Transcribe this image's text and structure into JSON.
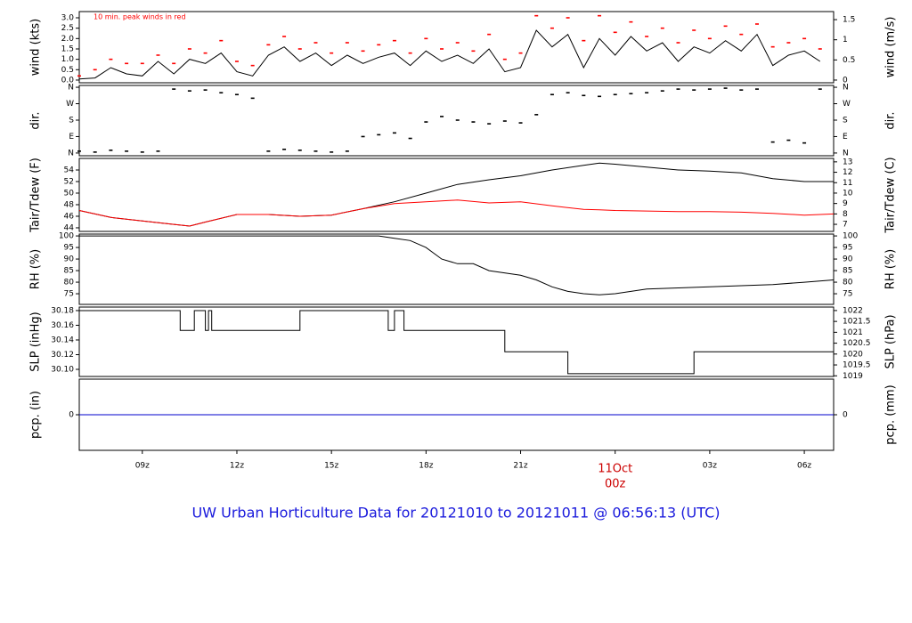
{
  "title": "UW Urban Horticulture Data for 20121010  to  20121011 @ 06:56:13  (UTC)",
  "chart_data": [
    {
      "type": "line",
      "ylabel": "wind (kts)",
      "y2label": "wind (m/s)",
      "annotation": "10 min. peak winds in red",
      "xlim": [
        7,
        30.93
      ],
      "ylim": [
        -0.13,
        3.3
      ],
      "y2lim": [
        -0.067,
        1.7
      ],
      "yticks": [
        {
          "value": 0,
          "label": "0.0"
        },
        0.5,
        {
          "value": 1,
          "label": "1.0"
        },
        1.5,
        {
          "value": 2,
          "label": "2.0"
        },
        2.5,
        {
          "value": 3,
          "label": "3.0"
        }
      ],
      "y2ticks": [
        0,
        0.5,
        1,
        1.5
      ],
      "x": [
        7,
        7.5,
        8,
        8.5,
        9,
        9.5,
        10,
        10.5,
        11,
        11.5,
        12,
        12.5,
        13,
        13.5,
        14,
        14.5,
        15,
        15.5,
        16,
        16.5,
        17,
        17.5,
        18,
        18.5,
        19,
        19.5,
        20,
        20.5,
        21,
        21.5,
        22,
        22.5,
        23,
        23.5,
        24,
        24.5,
        25,
        25.5,
        26,
        26.5,
        27,
        27.5,
        28,
        28.5,
        29,
        29.5,
        30,
        30.5
      ],
      "series": [
        {
          "type": "line",
          "color": "#000000",
          "values": [
            0.05,
            0.1,
            0.6,
            0.3,
            0.2,
            0.9,
            0.3,
            1.0,
            0.8,
            1.3,
            0.4,
            0.2,
            1.2,
            1.6,
            0.9,
            1.3,
            0.7,
            1.2,
            0.8,
            1.1,
            1.3,
            0.7,
            1.4,
            0.9,
            1.2,
            0.8,
            1.5,
            0.4,
            0.6,
            2.4,
            1.6,
            2.2,
            0.6,
            2.0,
            1.2,
            2.1,
            1.4,
            1.8,
            0.9,
            1.6,
            1.3,
            1.9,
            1.4,
            2.2,
            0.7,
            1.2,
            1.4,
            0.9
          ]
        },
        {
          "type": "scatter",
          "color": "#ff0000",
          "values": [
            0.2,
            0.5,
            1.0,
            0.8,
            0.8,
            1.2,
            0.8,
            1.5,
            1.3,
            1.9,
            0.9,
            0.7,
            1.7,
            2.1,
            1.5,
            1.8,
            1.3,
            1.8,
            1.4,
            1.7,
            1.9,
            1.3,
            2.0,
            1.5,
            1.8,
            1.4,
            2.2,
            1.0,
            1.3,
            3.1,
            2.5,
            3.0,
            1.9,
            3.1,
            2.3,
            2.8,
            2.1,
            2.5,
            1.8,
            2.4,
            2.0,
            2.6,
            2.2,
            2.7,
            1.6,
            1.8,
            2.0,
            1.5
          ]
        }
      ]
    },
    {
      "type": "scatter",
      "ylabel": "dir.",
      "y2label": "dir.",
      "right_ticks": "mirror",
      "xlim": [
        7,
        30.93
      ],
      "ylim": [
        -15,
        370
      ],
      "yticks": [
        {
          "value": 0,
          "label": "N"
        },
        {
          "value": 90,
          "label": "E"
        },
        {
          "value": 180,
          "label": "S"
        },
        {
          "value": 270,
          "label": "W"
        },
        {
          "value": 360,
          "label": "N"
        }
      ],
      "x": [
        7,
        7.5,
        8,
        8.5,
        9,
        9.5,
        10,
        10.5,
        11,
        11.5,
        12,
        12.5,
        13,
        13.5,
        14,
        14.5,
        15,
        15.5,
        16,
        16.5,
        17,
        17.5,
        18,
        18.5,
        19,
        19.5,
        20,
        20.5,
        21,
        21.5,
        22,
        22.5,
        23,
        23.5,
        24,
        24.5,
        25,
        25.5,
        26,
        26.5,
        27,
        27.5,
        28,
        28.5,
        29,
        29.5,
        30,
        30.5
      ],
      "series": [
        {
          "type": "scatter",
          "color": "#000000",
          "values": [
            10,
            5,
            15,
            10,
            5,
            10,
            350,
            340,
            345,
            330,
            320,
            300,
            10,
            20,
            15,
            10,
            5,
            10,
            90,
            100,
            110,
            80,
            170,
            200,
            180,
            170,
            160,
            175,
            165,
            210,
            320,
            330,
            315,
            310,
            320,
            325,
            330,
            340,
            350,
            345,
            350,
            355,
            345,
            350,
            60,
            70,
            55,
            350
          ]
        }
      ]
    },
    {
      "type": "line",
      "ylabel": "Tair/Tdew (F)",
      "y2label": "Tair/Tdew (C)",
      "xlim": [
        7,
        30.93
      ],
      "ylim": [
        43.38,
        56.0
      ],
      "y2lim": [
        6.32,
        13.33
      ],
      "yticks": [
        44,
        46,
        48,
        50,
        52,
        54
      ],
      "y2ticks": [
        7,
        8,
        9,
        10,
        11,
        12,
        13
      ],
      "x": [
        7,
        8,
        9,
        10,
        10.5,
        11,
        12,
        13,
        14,
        15,
        16,
        17,
        18,
        19,
        20,
        21,
        22,
        23,
        23.5,
        24,
        25,
        26,
        27,
        28,
        29,
        30,
        30.93
      ],
      "series": [
        {
          "type": "line",
          "color": "#000000",
          "values": [
            47,
            45.8,
            45.2,
            44.6,
            44.3,
            45,
            46.3,
            46.3,
            46,
            46.2,
            47.3,
            48.5,
            50,
            51.5,
            52.3,
            53,
            54,
            54.8,
            55.2,
            55,
            54.5,
            54,
            53.8,
            53.5,
            52.5,
            52,
            52
          ]
        },
        {
          "type": "line",
          "color": "#ff0000",
          "values": [
            47,
            45.8,
            45.2,
            44.6,
            44.3,
            45,
            46.3,
            46.3,
            46,
            46.2,
            47.3,
            48.2,
            48.5,
            48.8,
            48.3,
            48.5,
            47.8,
            47.2,
            47.1,
            47,
            46.9,
            46.8,
            46.8,
            46.7,
            46.5,
            46.2,
            46.4
          ]
        }
      ]
    },
    {
      "type": "line",
      "ylabel": "RH (%)",
      "y2label": "RH (%)",
      "right_ticks": "mirror",
      "xlim": [
        7,
        30.93
      ],
      "ylim": [
        70.4,
        100.8
      ],
      "yticks": [
        75,
        80,
        85,
        90,
        95,
        100
      ],
      "x": [
        7,
        16.5,
        17,
        17.5,
        18,
        18.5,
        19,
        19.5,
        20,
        21,
        21.5,
        22,
        22.5,
        23,
        23.5,
        24,
        25,
        26,
        27,
        28,
        29,
        30,
        30.93
      ],
      "series": [
        {
          "type": "line",
          "color": "#000000",
          "values": [
            100,
            100,
            99,
            98,
            95,
            90,
            88,
            88,
            85,
            83,
            81,
            78,
            76,
            75,
            74.5,
            75,
            77,
            77.5,
            78,
            78.5,
            79,
            80,
            81
          ]
        }
      ]
    },
    {
      "type": "line",
      "ylabel": "SLP (inHg)",
      "y2label": "SLP (hPa)",
      "xlim": [
        7,
        30.93
      ],
      "ylim": [
        30.0903,
        30.1848
      ],
      "y2lim": [
        1018.97,
        1022.16
      ],
      "yticks": [
        {
          "value": 30.1,
          "label": "30.10"
        },
        30.12,
        30.14,
        30.16,
        30.18
      ],
      "y2ticks": [
        1019,
        1019.5,
        1020,
        1020.5,
        1021,
        1021.5,
        1022
      ],
      "x": [
        7,
        10.2,
        10.65,
        11.0,
        11.1,
        11.2,
        14.0,
        16.8,
        17.0,
        17.3,
        20.5,
        22.5,
        26.5
      ],
      "series": [
        {
          "type": "step",
          "color": "#000000",
          "values": [
            30.18,
            30.153,
            30.18,
            30.153,
            30.18,
            30.153,
            30.18,
            30.153,
            30.18,
            30.153,
            30.124,
            30.094,
            30.124
          ]
        }
      ]
    },
    {
      "type": "line",
      "ylabel": "pcp. (in)",
      "y2label": "pcp. (mm)",
      "xlim": [
        7,
        30.93
      ],
      "ylim": [
        -0.1,
        0.1
      ],
      "y2lim": [
        -2.54,
        2.54
      ],
      "yticks": [
        0
      ],
      "y2ticks": [
        0
      ],
      "x": [
        7,
        30.93
      ],
      "xticks": [
        {
          "value": 9,
          "label": "09z"
        },
        {
          "value": 12,
          "label": "12z"
        },
        {
          "value": 15,
          "label": "15z"
        },
        {
          "value": 18,
          "label": "18z"
        },
        {
          "value": 21,
          "label": "21z"
        },
        {
          "value": 24,
          "label": "00z"
        },
        {
          "value": 27,
          "label": "03z"
        },
        {
          "value": 30,
          "label": "06z"
        }
      ],
      "date_label": {
        "value": 24,
        "label": "11Oct"
      },
      "series": [
        {
          "type": "line",
          "color": "#0000cc",
          "values": [
            0,
            0
          ]
        }
      ]
    }
  ]
}
